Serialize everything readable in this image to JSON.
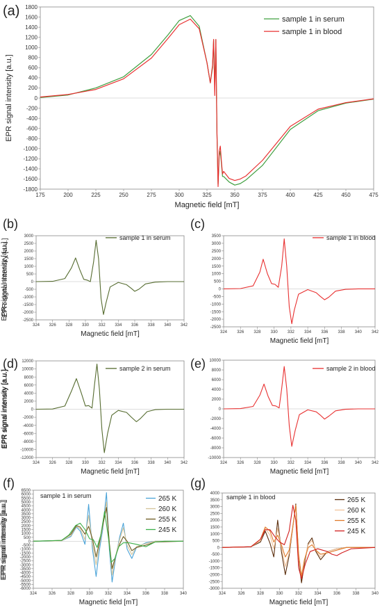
{
  "chart_data": [
    {
      "panel": "(a)",
      "type": "line",
      "xlabel": "Magnetic field [mT]",
      "ylabel": "EPR signal intensity [a.u.]",
      "xlim": [
        175,
        475
      ],
      "ylim": [
        -1800,
        1800
      ],
      "xticks": [
        175,
        200,
        225,
        250,
        275,
        300,
        325,
        350,
        375,
        400,
        425,
        450,
        475
      ],
      "yticks": [
        -1800,
        -1600,
        -1400,
        -1200,
        -1000,
        -800,
        -600,
        -400,
        -200,
        0,
        200,
        400,
        600,
        800,
        1000,
        1200,
        1400,
        1600,
        1800
      ],
      "legend_position": "top-right",
      "grid": false,
      "series": [
        {
          "name": "sample 1 in serum",
          "color": "#3f9f3f",
          "x": [
            175,
            200,
            225,
            250,
            275,
            290,
            300,
            310,
            318,
            325,
            328,
            330,
            331,
            332,
            333,
            334,
            335,
            336,
            337,
            338,
            339,
            340,
            345,
            350,
            355,
            360,
            375,
            400,
            425,
            450,
            475
          ],
          "y": [
            10,
            60,
            200,
            420,
            860,
            1250,
            1530,
            1630,
            1420,
            700,
            300,
            600,
            1150,
            200,
            1150,
            -700,
            -1700,
            -1150,
            -1050,
            -1300,
            -1550,
            -1550,
            -1660,
            -1720,
            -1690,
            -1620,
            -1330,
            -620,
            -250,
            -100,
            -20
          ]
        },
        {
          "name": "sample 1 in blood",
          "color": "#e83030",
          "x": [
            175,
            200,
            225,
            250,
            275,
            290,
            300,
            310,
            318,
            325,
            328,
            330,
            331,
            332,
            333,
            334,
            335,
            336,
            337,
            338,
            339,
            340,
            345,
            350,
            355,
            360,
            375,
            400,
            425,
            450,
            475
          ],
          "y": [
            20,
            70,
            170,
            380,
            790,
            1180,
            1450,
            1560,
            1370,
            700,
            300,
            650,
            1160,
            50,
            1160,
            -700,
            -1750,
            -1050,
            -950,
            -1250,
            -1500,
            -1450,
            -1590,
            -1630,
            -1600,
            -1540,
            -1230,
            -560,
            -220,
            -90,
            -15
          ]
        }
      ]
    },
    {
      "panel": "(b)",
      "type": "line",
      "xlabel": "Magnetic field [mT]",
      "ylabel": "EPR signal intensity [a.u.]",
      "xlim": [
        324,
        342
      ],
      "ylim": [
        -2500,
        3000
      ],
      "xticks": [
        324,
        326,
        328,
        330,
        332,
        334,
        336,
        338,
        340,
        342
      ],
      "yticks": [
        -2500,
        -2000,
        -1500,
        -1000,
        -500,
        0,
        500,
        1000,
        1500,
        2000,
        2500,
        3000
      ],
      "legend_position": "top-right",
      "grid": false,
      "series": [
        {
          "name": "sample 1 in serum",
          "color": "#556b2f",
          "x": [
            324,
            326,
            327.5,
            328.3,
            328.8,
            329.3,
            329.8,
            330.2,
            330.6,
            331,
            331.3,
            331.6,
            331.9,
            332.2,
            332.5,
            333,
            334,
            335,
            335.6,
            336,
            336.5,
            337.3,
            338.5,
            340,
            342
          ],
          "y": [
            0,
            20,
            200,
            900,
            1550,
            800,
            150,
            100,
            0,
            1300,
            2700,
            1500,
            -1100,
            -2150,
            -1400,
            -350,
            -50,
            -200,
            -450,
            -630,
            -500,
            -150,
            -30,
            0,
            0
          ]
        }
      ]
    },
    {
      "panel": "(c)",
      "type": "line",
      "xlabel": "Magnetic field [mT]",
      "ylabel": "EPR signal intensity [a.u.]",
      "xlim": [
        324,
        342
      ],
      "ylim": [
        -2500,
        3500
      ],
      "xticks": [
        324,
        326,
        328,
        330,
        332,
        334,
        336,
        338,
        340,
        342
      ],
      "yticks": [
        -2500,
        -2000,
        -1500,
        -1000,
        -500,
        0,
        500,
        1000,
        1500,
        2000,
        2500,
        3000,
        3500
      ],
      "legend_position": "top-right",
      "grid": false,
      "series": [
        {
          "name": "sample 1 in blood",
          "color": "#e83030",
          "x": [
            324,
            326,
            327.5,
            328.3,
            328.7,
            329.2,
            329.7,
            330.1,
            330.5,
            330.9,
            331.2,
            331.5,
            331.8,
            332.1,
            332.4,
            332.9,
            334,
            335,
            335.5,
            336,
            336.5,
            337.3,
            338.5,
            340,
            342
          ],
          "y": [
            0,
            20,
            200,
            1100,
            1950,
            1000,
            350,
            300,
            100,
            1500,
            3300,
            1500,
            -1200,
            -2300,
            -1400,
            -350,
            -50,
            -250,
            -500,
            -720,
            -550,
            -150,
            -30,
            0,
            0
          ]
        }
      ]
    },
    {
      "panel": "(d)",
      "type": "line",
      "xlabel": "Magnetic field [mT]",
      "ylabel": "EPR signal intensity [a.u.]",
      "xlim": [
        324,
        342
      ],
      "ylim": [
        -12000,
        12000
      ],
      "xticks": [
        324,
        326,
        328,
        330,
        332,
        334,
        336,
        338,
        340,
        342
      ],
      "yticks": [
        -12000,
        -10000,
        -8000,
        -6000,
        -4000,
        -2000,
        0,
        2000,
        4000,
        6000,
        8000,
        10000,
        12000
      ],
      "legend_position": "top-right",
      "grid": false,
      "series": [
        {
          "name": "sample 2 in serum",
          "color": "#556b2f",
          "x": [
            324,
            326,
            327.5,
            328.3,
            328.9,
            329.5,
            330,
            330.4,
            330.8,
            331.1,
            331.4,
            331.7,
            332,
            332.3,
            332.7,
            333.2,
            334,
            335,
            335.6,
            336.2,
            336.7,
            337.5,
            338.5,
            340,
            342
          ],
          "y": [
            0,
            50,
            800,
            4500,
            7600,
            4000,
            800,
            900,
            300,
            6000,
            11200,
            5000,
            -5000,
            -10800,
            -6000,
            -1500,
            -300,
            -800,
            -2000,
            -3100,
            -2300,
            -600,
            -100,
            0,
            0
          ]
        }
      ]
    },
    {
      "panel": "(e)",
      "type": "line",
      "xlabel": "Magnetic field [mT]",
      "ylabel": "EPR signal intensity [a.u.]",
      "xlim": [
        324,
        342
      ],
      "ylim": [
        -10000,
        10000
      ],
      "xticks": [
        324,
        326,
        328,
        330,
        332,
        334,
        336,
        338,
        340,
        342
      ],
      "yticks": [
        -10000,
        -8000,
        -6000,
        -4000,
        -2000,
        0,
        2000,
        4000,
        6000,
        8000,
        10000
      ],
      "legend_position": "top-right",
      "grid": false,
      "series": [
        {
          "name": "sample 2 in blood",
          "color": "#e83030",
          "x": [
            324,
            326,
            327.5,
            328.3,
            328.8,
            329.3,
            329.8,
            330.2,
            330.6,
            330.9,
            331.2,
            331.5,
            331.8,
            332.1,
            332.5,
            333,
            334,
            335,
            335.5,
            336,
            336.5,
            337.3,
            338.5,
            340,
            342
          ],
          "y": [
            0,
            50,
            500,
            2800,
            5100,
            2500,
            700,
            600,
            200,
            4200,
            8700,
            4200,
            -3500,
            -7700,
            -4500,
            -1200,
            -200,
            -600,
            -1300,
            -2100,
            -1500,
            -400,
            -80,
            0,
            0
          ]
        }
      ]
    },
    {
      "panel": "(f)",
      "type": "line",
      "xlabel": "Magnetic field [mT]",
      "ylabel": "EPR signal intensity [a.u.]",
      "xlim": [
        324,
        340
      ],
      "ylim": [
        -6000,
        6500
      ],
      "xticks": [
        324,
        326,
        328,
        330,
        332,
        334,
        336,
        338,
        340
      ],
      "yticks": [
        -6000,
        -5500,
        -5000,
        -4500,
        -4000,
        -3500,
        -3000,
        -2500,
        -2000,
        -1500,
        -1000,
        -500,
        0,
        500,
        1000,
        1500,
        2000,
        2500,
        3000,
        3500,
        4000,
        4500,
        5000,
        5500,
        6000,
        6500
      ],
      "annotation": "sample 1 in serum",
      "legend_position": "top-right",
      "grid": false,
      "series": [
        {
          "name": "265 K",
          "color": "#4aa3d8",
          "x": [
            324,
            327,
            328,
            328.6,
            329,
            329.5,
            329.9,
            330.3,
            330.7,
            331,
            331.4,
            331.8,
            332.1,
            332.4,
            332.8,
            333.2,
            333.6,
            334,
            334.5,
            335,
            336,
            337,
            340
          ],
          "y": [
            0,
            50,
            600,
            1800,
            1300,
            -400,
            4700,
            -1000,
            -4500,
            -1500,
            1500,
            6200,
            -1000,
            -5200,
            -2000,
            500,
            2300,
            -1000,
            -2200,
            -800,
            -200,
            0,
            0
          ]
        },
        {
          "name": "260 K",
          "color": "#d4c49a",
          "x": [
            324,
            327,
            328,
            328.6,
            329,
            329.5,
            329.9,
            330.3,
            330.7,
            331,
            331.4,
            331.8,
            332.1,
            332.4,
            332.8,
            333.2,
            333.6,
            334,
            334.5,
            335,
            336,
            337,
            340
          ],
          "y": [
            0,
            50,
            700,
            1900,
            1600,
            200,
            3300,
            -400,
            -3000,
            -800,
            1800,
            5000,
            -500,
            -4300,
            -1800,
            200,
            1700,
            -500,
            -1700,
            -700,
            -300,
            0,
            0
          ]
        },
        {
          "name": "255 K",
          "color": "#6b5a1e",
          "x": [
            324,
            327,
            328,
            328.6,
            329,
            329.5,
            329.9,
            330.3,
            330.7,
            331,
            331.4,
            331.8,
            332.1,
            332.4,
            332.8,
            333.2,
            333.6,
            334,
            334.5,
            335,
            336,
            337,
            340
          ],
          "y": [
            0,
            100,
            900,
            2000,
            1800,
            900,
            1900,
            300,
            -2000,
            -400,
            2000,
            4300,
            -200,
            -3500,
            -1800,
            -400,
            600,
            0,
            -1200,
            -800,
            -500,
            -100,
            0
          ]
        },
        {
          "name": "245 K",
          "color": "#3cb04a",
          "x": [
            324,
            327,
            327.8,
            328.5,
            329,
            329.5,
            330,
            330.4,
            330.8,
            331.2,
            331.6,
            332,
            332.3,
            332.7,
            333.1,
            333.6,
            334.2,
            335,
            336,
            336.5,
            337,
            338,
            340
          ],
          "y": [
            0,
            100,
            800,
            2000,
            2300,
            1500,
            300,
            200,
            -800,
            800,
            3800,
            500,
            -2700,
            -2200,
            -700,
            -200,
            -200,
            -400,
            -700,
            -400,
            -100,
            0,
            0
          ]
        }
      ]
    },
    {
      "panel": "(g)",
      "type": "line",
      "xlabel": "Magnetic field [mT]",
      "ylabel": "EPR signal intensity [a.u.]",
      "xlim": [
        324,
        340
      ],
      "ylim": [
        -3000,
        4000
      ],
      "xticks": [
        324,
        326,
        328,
        330,
        332,
        334,
        336,
        338,
        340
      ],
      "yticks": [
        -3000,
        -2500,
        -2000,
        -1500,
        -1000,
        -500,
        0,
        500,
        1000,
        1500,
        2000,
        2500,
        3000,
        3500,
        4000
      ],
      "annotation": "sample 1 in blood",
      "legend_position": "top-right",
      "grid": false,
      "series": [
        {
          "name": "265 K",
          "color": "#5a2d0c",
          "x": [
            324,
            327,
            328,
            328.5,
            329,
            329.4,
            329.8,
            330.2,
            330.6,
            331,
            331.4,
            331.7,
            332,
            332.3,
            332.6,
            333,
            333.4,
            333.8,
            334.3,
            335,
            336,
            337,
            340
          ],
          "y": [
            0,
            50,
            400,
            1200,
            300,
            -700,
            2000,
            -300,
            -2000,
            -600,
            1500,
            3200,
            -800,
            -2600,
            -1200,
            300,
            700,
            -300,
            -900,
            -300,
            -100,
            0,
            0
          ]
        },
        {
          "name": "260 K",
          "color": "#f2c49a",
          "x": [
            324,
            327,
            328,
            328.5,
            329,
            329.4,
            329.8,
            330.2,
            330.6,
            331,
            331.4,
            331.7,
            332,
            332.3,
            332.6,
            333,
            333.4,
            333.8,
            334.3,
            335,
            336,
            337,
            340
          ],
          "y": [
            0,
            50,
            500,
            1400,
            900,
            -100,
            1400,
            0,
            -1400,
            -400,
            1500,
            3100,
            -700,
            -2300,
            -1000,
            200,
            500,
            -200,
            -700,
            -300,
            -100,
            0,
            0
          ]
        },
        {
          "name": "255 K",
          "color": "#e07a2a",
          "x": [
            324,
            327,
            328,
            328.5,
            329,
            329.4,
            329.8,
            330.2,
            330.6,
            331,
            331.4,
            331.7,
            332,
            332.3,
            332.6,
            333,
            333.4,
            333.8,
            334.3,
            335,
            336,
            337,
            340
          ],
          "y": [
            0,
            50,
            600,
            1500,
            1200,
            400,
            900,
            200,
            -700,
            -200,
            1600,
            3100,
            -500,
            -2100,
            -900,
            0,
            200,
            -200,
            -500,
            -400,
            -200,
            0,
            0
          ]
        },
        {
          "name": "245 K",
          "color": "#d21e1e",
          "x": [
            324,
            327,
            328,
            328.5,
            329,
            329.5,
            330,
            330.5,
            331,
            331.4,
            331.7,
            332,
            332.3,
            332.7,
            333.2,
            334,
            335,
            335.5,
            336,
            336.5,
            337.5,
            340
          ],
          "y": [
            0,
            50,
            600,
            1300,
            1300,
            800,
            400,
            200,
            1200,
            3100,
            2000,
            -1500,
            -2300,
            -1200,
            -300,
            -100,
            -300,
            -500,
            -600,
            -400,
            -100,
            0
          ]
        }
      ]
    }
  ]
}
